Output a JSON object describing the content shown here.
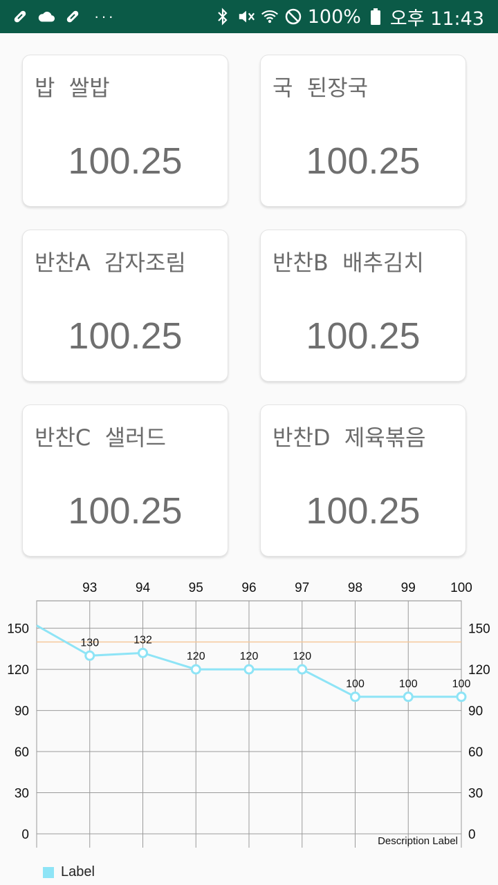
{
  "status_bar": {
    "left_icons": [
      "pill-icon",
      "cloud-icon",
      "pill-icon",
      "more-dots-icon"
    ],
    "right_icons": [
      "bluetooth-icon",
      "vibrate-mute-icon",
      "wifi-icon",
      "do-not-disturb-icon",
      "battery-icon"
    ],
    "battery_text": "100%",
    "time_text": "오후 11:43",
    "background": "#0b5a47"
  },
  "cards": [
    {
      "title": "밥  쌀밥",
      "value": "100.25"
    },
    {
      "title": "국  된장국",
      "value": "100.25"
    },
    {
      "title": "반찬A  감자조림",
      "value": "100.25"
    },
    {
      "title": "반찬B  배추김치",
      "value": "100.25"
    },
    {
      "title": "반찬C  샐러드",
      "value": "100.25"
    },
    {
      "title": "반찬D  제육볶음",
      "value": "100.25"
    }
  ],
  "chart_data": {
    "type": "line",
    "x": [
      92,
      93,
      94,
      95,
      96,
      97,
      98,
      99,
      100
    ],
    "x_tick_labels": [
      "93",
      "94",
      "95",
      "96",
      "97",
      "98",
      "99",
      "100"
    ],
    "series": [
      {
        "name": "Label",
        "color": "#8ee4f6",
        "values": [
          152,
          130,
          132,
          120,
          120,
          120,
          100,
          100,
          100
        ],
        "value_labels": [
          "",
          "130",
          "132",
          "120",
          "120",
          "120",
          "100",
          "100",
          "100"
        ]
      }
    ],
    "limit_line": {
      "value": 140,
      "color": "#f5c79a"
    },
    "ylim": [
      0,
      170
    ],
    "y_ticks": [
      0,
      30,
      60,
      90,
      120,
      150
    ],
    "y_tick_labels": [
      "0",
      "30",
      "60",
      "90",
      "120",
      "150"
    ],
    "x_axis_position": "top",
    "y_axis_both_sides": true,
    "grid": true,
    "description": "Description Label",
    "legend": {
      "position": "bottom-left",
      "entries": [
        "Label"
      ]
    }
  }
}
